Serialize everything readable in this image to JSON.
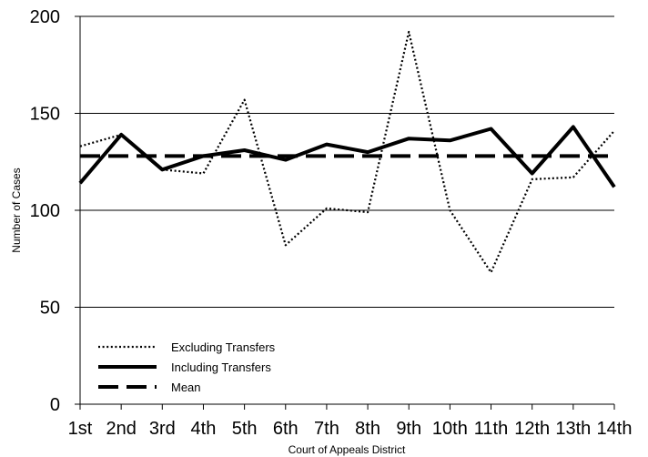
{
  "chart_data": {
    "type": "line",
    "categories": [
      "1st",
      "2nd",
      "3rd",
      "4th",
      "5th",
      "6th",
      "7th",
      "8th",
      "9th",
      "10th",
      "11th",
      "12th",
      "13th",
      "14th"
    ],
    "xlabel": "Court of Appeals District",
    "ylabel": "Number of Cases",
    "ylim": [
      0,
      200
    ],
    "yticks": [
      0,
      50,
      100,
      150,
      200
    ],
    "grid": "horizontal",
    "legend_position": "bottom-left",
    "series": [
      {
        "name": "Excluding Transfers",
        "style": "dotted",
        "values": [
          133,
          139,
          121,
          119,
          157,
          82,
          101,
          99,
          192,
          100,
          68,
          116,
          117,
          141
        ]
      },
      {
        "name": "Including Transfers",
        "style": "solid",
        "values": [
          114,
          139,
          121,
          128,
          131,
          126,
          134,
          130,
          137,
          136,
          142,
          119,
          143,
          112
        ]
      },
      {
        "name": "Mean",
        "style": "dashed",
        "values": [
          128,
          128,
          128,
          128,
          128,
          128,
          128,
          128,
          128,
          128,
          128,
          128,
          128,
          128
        ]
      }
    ],
    "colors": {
      "line": "#000000",
      "grid": "#000000",
      "background": "#ffffff"
    }
  }
}
